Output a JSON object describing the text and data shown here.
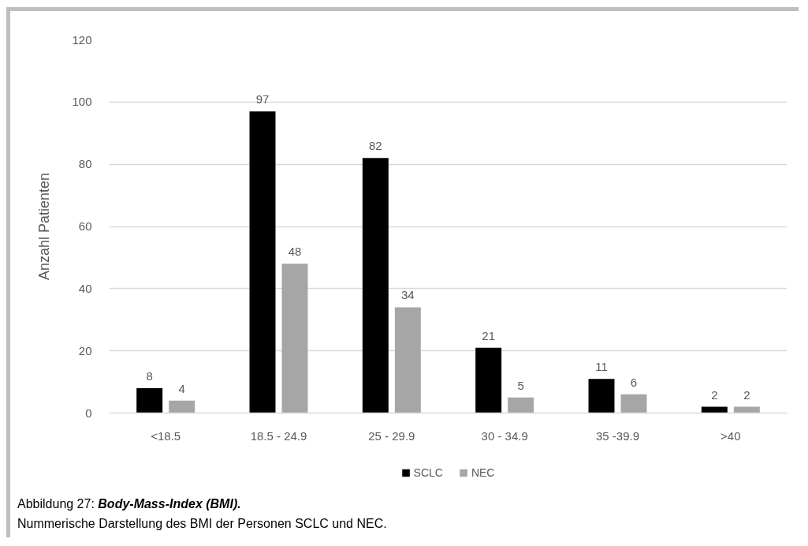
{
  "chart_data": {
    "type": "bar",
    "ylabel": "Anzahl Patienten",
    "categories": [
      "<18.5",
      "18.5 - 24.9",
      "25 - 29.9",
      "30 - 34.9",
      "35 -39.9",
      ">40"
    ],
    "series": [
      {
        "name": "SCLC",
        "color": "#000000",
        "values": [
          8,
          97,
          82,
          21,
          11,
          2
        ]
      },
      {
        "name": "NEC",
        "color": "#a6a6a6",
        "values": [
          4,
          48,
          34,
          5,
          6,
          2
        ]
      }
    ],
    "ylim": [
      0,
      120
    ],
    "yticks": [
      0,
      20,
      40,
      60,
      80,
      100,
      120
    ],
    "grid": "y",
    "legend": "bottom",
    "data_labels": true,
    "annotations": [
      "Abbildung 27: Body-Mass-Index (BMI).",
      "Nummerische Darstellung des BMI der Personen SCLC und NEC."
    ]
  }
}
